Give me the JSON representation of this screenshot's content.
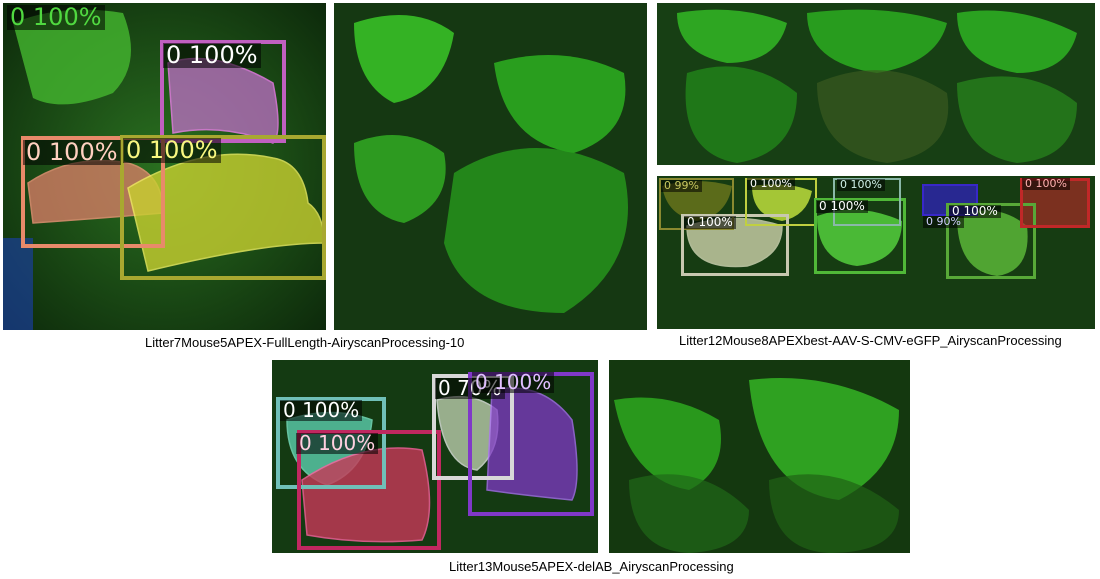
{
  "captions": {
    "top_left": "Litter7Mouse5APEX-FullLength-AiryscanProcessing-10",
    "top_right": "Litter12Mouse8APEXbest-AAV-S-CMV-eGFP_AiryscanProcessing",
    "bottom": "Litter13Mouse5APEX-delAB_AiryscanProcessing"
  },
  "panel1": {
    "labels": [
      "0 100%",
      "0 100%",
      "0 100%",
      "0 100%"
    ]
  },
  "panel4": {
    "labels": [
      "0 99%",
      "0 100%",
      "0 100%",
      "0 100%",
      "0 100%",
      "0 100%",
      "0 100%",
      "0 90%"
    ]
  },
  "panel5": {
    "labels": [
      "0 100%",
      "0 100%",
      "0 70%",
      "0 100%"
    ]
  },
  "colors": {
    "background_green": "#1f5a1a",
    "bright_green": "#3ecf2a",
    "pink": "#e070e0",
    "salmon": "#e8907a",
    "yellow": "#d8e040",
    "teal": "#60d8c0",
    "red": "#d83050",
    "purple": "#9040d8",
    "white": "#e8e8e8"
  }
}
